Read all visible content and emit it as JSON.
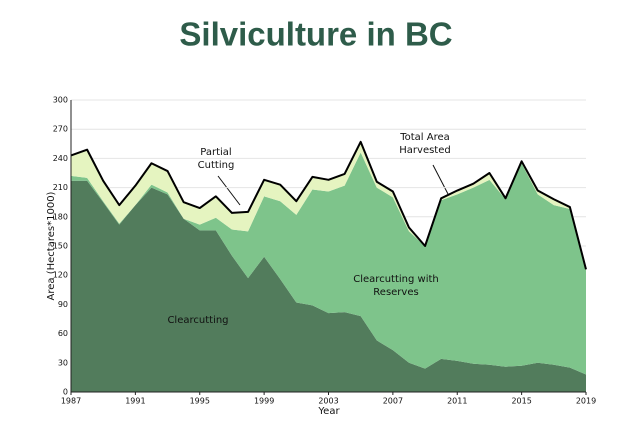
{
  "chart_data": {
    "type": "stacked-area",
    "title": "Silviculture in BC",
    "x_label": "Year",
    "y_label": "Area (Hectares*1000)",
    "x": [
      1987,
      1988,
      1989,
      1990,
      1991,
      1992,
      1993,
      1994,
      1995,
      1996,
      1997,
      1998,
      1999,
      2000,
      2001,
      2002,
      2003,
      2004,
      2005,
      2006,
      2007,
      2008,
      2009,
      2010,
      2011,
      2012,
      2013,
      2014,
      2015,
      2016,
      2017,
      2018,
      2019
    ],
    "xlim": [
      1987,
      2019
    ],
    "xticks": [
      1987,
      1991,
      1995,
      1999,
      2003,
      2007,
      2011,
      2015,
      2019
    ],
    "ylim": [
      0,
      300
    ],
    "yticks": [
      0,
      30,
      60,
      90,
      120,
      150,
      180,
      210,
      240,
      270,
      300
    ],
    "series": [
      {
        "name": "Clearcutting",
        "color": "#527c5c",
        "values": [
          217,
          217,
          195,
          172,
          192,
          210,
          203,
          178,
          166,
          166,
          140,
          117,
          139,
          116,
          92,
          89,
          81,
          82,
          78,
          53,
          43,
          30,
          24,
          34,
          32,
          29,
          28,
          26,
          27,
          30,
          28,
          25,
          18
        ]
      },
      {
        "name": "Clearcutting with Reserves",
        "color": "#7ec48b",
        "values": [
          5,
          3,
          1,
          1,
          0,
          3,
          2,
          0,
          6,
          13,
          27,
          48,
          62,
          80,
          90,
          119,
          125,
          130,
          168,
          157,
          157,
          135,
          126,
          163,
          171,
          181,
          190,
          172,
          208,
          173,
          164,
          163,
          107
        ]
      },
      {
        "name": "Partial Cutting",
        "color": "#e5f4c0",
        "values": [
          21,
          29,
          21,
          19,
          20,
          22,
          22,
          17,
          17,
          22,
          17,
          20,
          17,
          17,
          14,
          13,
          12,
          12,
          11,
          6,
          6,
          4,
          0,
          2,
          4,
          4,
          7,
          1,
          2,
          4,
          6,
          2,
          1
        ]
      }
    ],
    "annotations": [
      {
        "lines": [
          "Partial",
          "Cutting"
        ]
      },
      {
        "lines": [
          "Total Area",
          "Harvested"
        ]
      },
      {
        "lines": [
          "Clearcutting with",
          "Reserves"
        ]
      },
      {
        "lines": [
          "Clearcutting"
        ]
      }
    ]
  }
}
